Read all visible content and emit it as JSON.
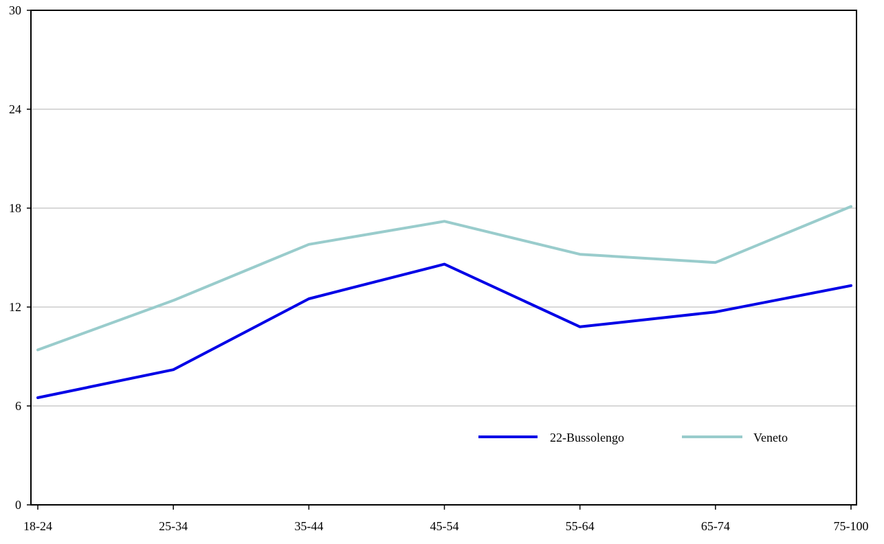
{
  "chart_data": {
    "type": "line",
    "categories": [
      "18-24",
      "25-34",
      "35-44",
      "45-54",
      "55-64",
      "65-74",
      "75-100"
    ],
    "series": [
      {
        "name": "22-Bussolengo",
        "color": "#0000e6",
        "values": [
          6.5,
          8.2,
          12.5,
          14.6,
          10.8,
          11.7,
          13.3
        ]
      },
      {
        "name": "Veneto",
        "color": "#99cccc",
        "values": [
          9.4,
          12.4,
          15.8,
          17.2,
          15.2,
          14.7,
          18.1
        ]
      }
    ],
    "yticks": [
      0,
      6,
      12,
      18,
      24,
      30
    ],
    "ylim": [
      0,
      30
    ],
    "grid": true,
    "legend": "bottom-right",
    "xlabel": "",
    "ylabel": "",
    "title": ""
  }
}
